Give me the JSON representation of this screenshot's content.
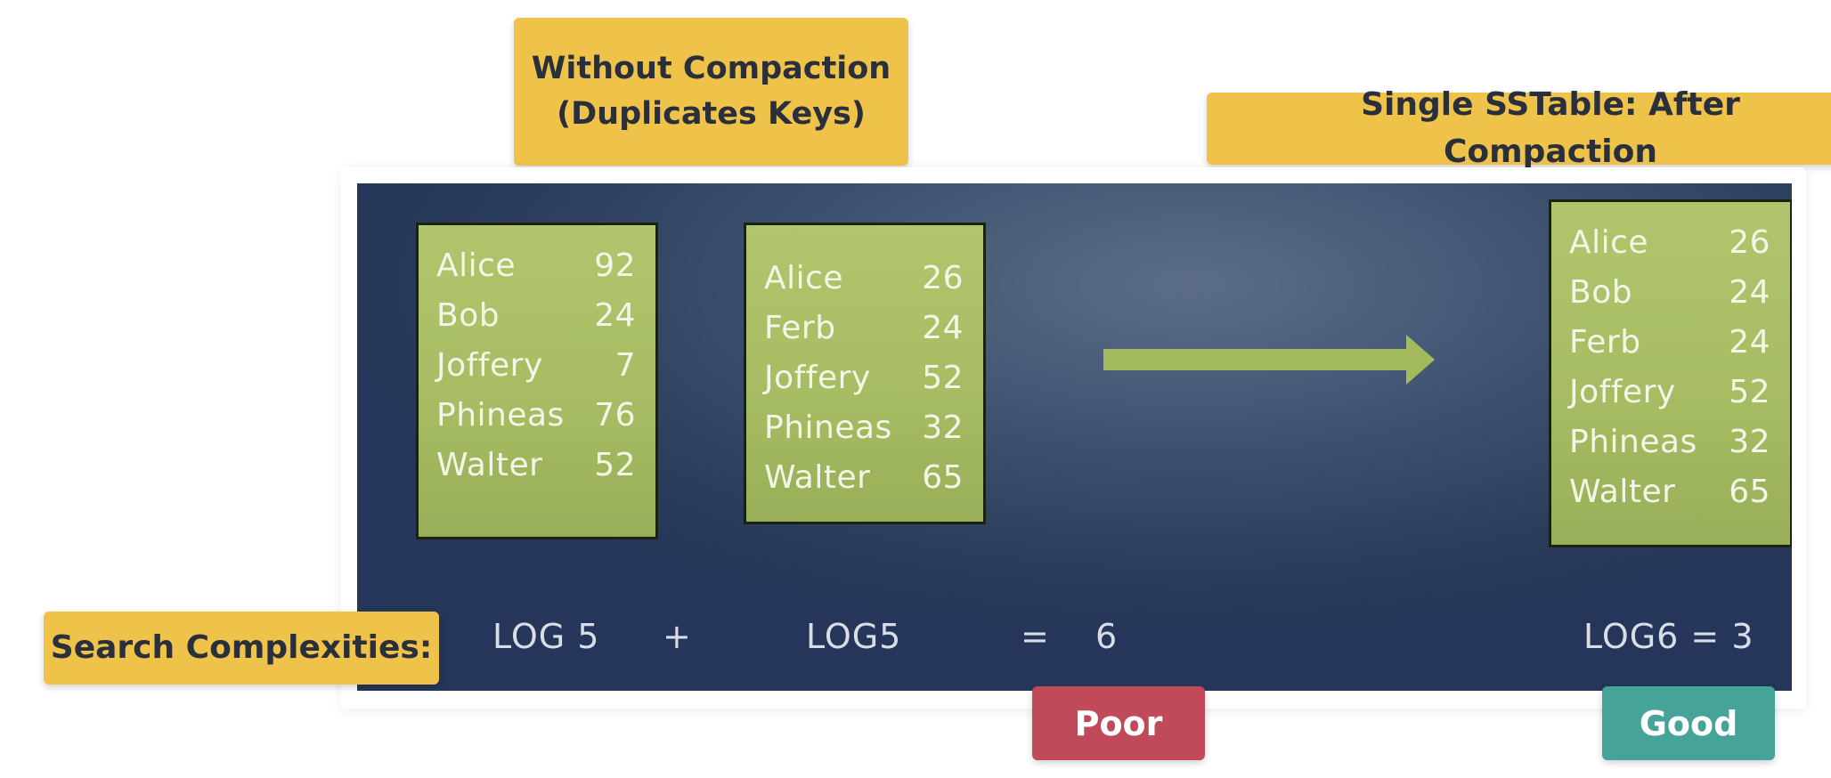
{
  "labels": {
    "without_line1": "Without Compaction",
    "without_line2": "(Duplicates Keys)",
    "single": "Single SSTable: After Compaction",
    "search": "Search Complexities:"
  },
  "tables": {
    "a": [
      {
        "key": "Alice",
        "value": "92"
      },
      {
        "key": "Bob",
        "value": "24"
      },
      {
        "key": "Joffery",
        "value": "7"
      },
      {
        "key": "Phineas",
        "value": "76"
      },
      {
        "key": "Walter",
        "value": "52"
      }
    ],
    "b": [
      {
        "key": "Alice",
        "value": "26"
      },
      {
        "key": "Ferb",
        "value": "24"
      },
      {
        "key": "Joffery",
        "value": "52"
      },
      {
        "key": "Phineas",
        "value": "32"
      },
      {
        "key": "Walter",
        "value": "65"
      }
    ],
    "c": [
      {
        "key": "Alice",
        "value": "26"
      },
      {
        "key": "Bob",
        "value": "24"
      },
      {
        "key": "Ferb",
        "value": "24"
      },
      {
        "key": "Joffery",
        "value": "52"
      },
      {
        "key": "Phineas",
        "value": "32"
      },
      {
        "key": "Walter",
        "value": "65"
      }
    ]
  },
  "formula": {
    "log5_a": "LOG 5",
    "plus": "+",
    "log5_b": "LOG5",
    "equals": "=",
    "result": "6",
    "log6": "LOG6 = 3"
  },
  "badges": {
    "poor": "Poor",
    "good": "Good"
  },
  "colors": {
    "tag": "#efc34a",
    "poor": "#c14a5a",
    "good": "#45a398",
    "table": "#a6bc62",
    "slide": "#34486a"
  }
}
